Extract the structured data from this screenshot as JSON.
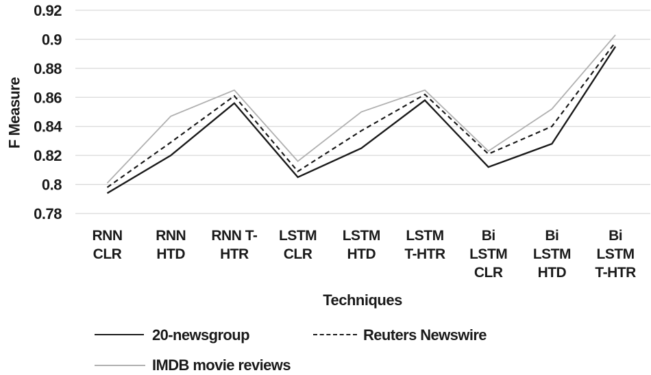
{
  "chart_data": {
    "type": "line",
    "title": "",
    "xlabel": "Techniques",
    "ylabel": "F Measure",
    "ylim": [
      0.78,
      0.92
    ],
    "yticks": [
      0.78,
      0.8,
      0.82,
      0.84,
      0.86,
      0.88,
      0.9,
      0.92
    ],
    "ytick_labels": [
      "0.78",
      "0.8",
      "0.82",
      "0.84",
      "0.86",
      "0.88",
      "0.9",
      "0.92"
    ],
    "grid": true,
    "gridline_color": "#d9d9d9",
    "legend_position": "bottom-left",
    "categories": [
      "RNN CLR",
      "RNN HTD",
      "RNN T-HTR",
      "LSTM CLR",
      "LSTM HTD",
      "LSTM T-HTR",
      "Bi LSTM CLR",
      "Bi LSTM HTD",
      "Bi LSTM T-HTR"
    ],
    "categories_lines": [
      [
        "RNN",
        "CLR"
      ],
      [
        "RNN",
        "HTD"
      ],
      [
        "RNN T-",
        "HTR"
      ],
      [
        "LSTM",
        "CLR"
      ],
      [
        "LSTM",
        "HTD"
      ],
      [
        "LSTM",
        "T-HTR"
      ],
      [
        "Bi",
        "LSTM",
        "CLR"
      ],
      [
        "Bi",
        "LSTM",
        "HTD"
      ],
      [
        "Bi",
        "LSTM",
        "T-HTR"
      ]
    ],
    "series": [
      {
        "name": "20-newsgroup",
        "line_style": "solid",
        "color": "#1a1a1a",
        "stroke_width": 2.4,
        "values": [
          0.794,
          0.82,
          0.856,
          0.805,
          0.825,
          0.858,
          0.812,
          0.828,
          0.895
        ]
      },
      {
        "name": "Reuters Newswire",
        "line_style": "dashed",
        "color": "#1a1a1a",
        "stroke_width": 2.2,
        "values": [
          0.798,
          0.829,
          0.861,
          0.809,
          0.837,
          0.862,
          0.821,
          0.84,
          0.898
        ]
      },
      {
        "name": "IMDB movie reviews",
        "line_style": "solid",
        "color": "#b0b0b0",
        "stroke_width": 1.8,
        "values": [
          0.801,
          0.847,
          0.865,
          0.816,
          0.85,
          0.865,
          0.823,
          0.852,
          0.903
        ]
      }
    ]
  }
}
